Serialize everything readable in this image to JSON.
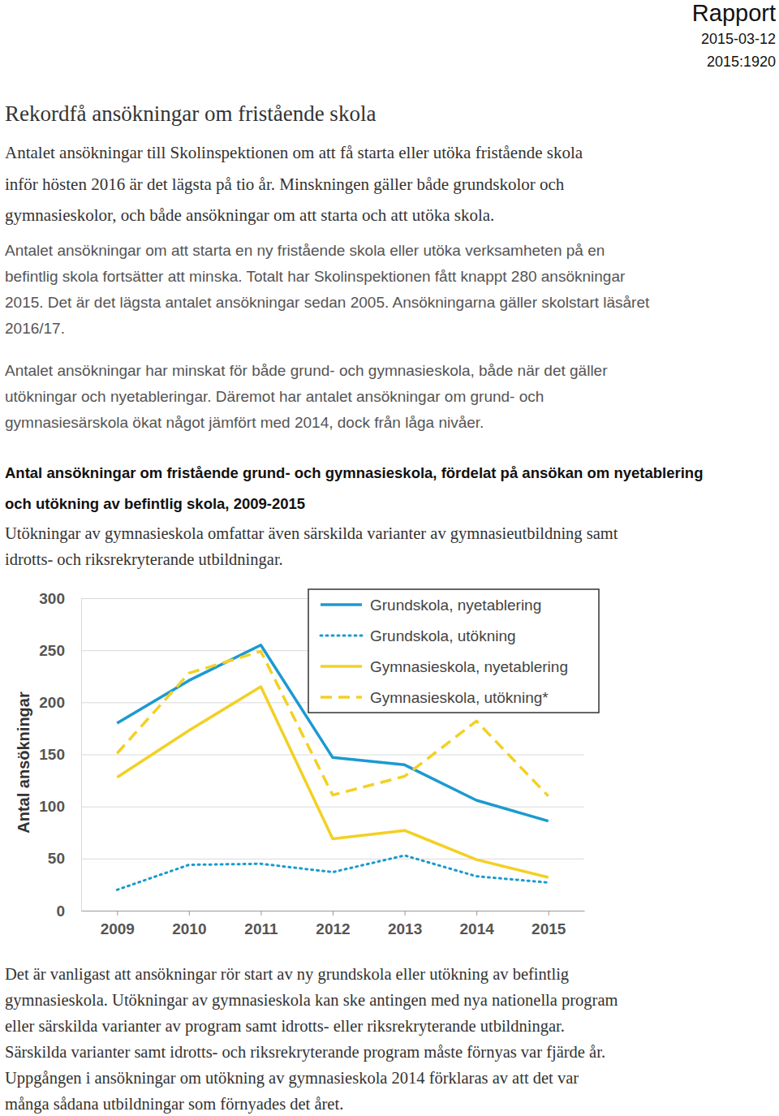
{
  "header": {
    "label": "Rapport",
    "date": "2015-03-12",
    "number": "2015:1920"
  },
  "title": "Rekordfå ansökningar om fristående skola",
  "lead": [
    "Antalet ansökningar till Skolinspektionen om att få starta eller utöka fristående skola",
    "inför hösten 2016 är det lägsta på tio år. Minskningen gäller både grundskolor och",
    "gymnasieskolor, och både ansökningar om att starta och att utöka skola."
  ],
  "paragraphs": [
    [
      "Antalet ansökningar om att starta en ny fristående skola eller utöka verksamheten på en",
      "befintlig skola fortsätter att minska. Totalt har Skolinspektionen fått knappt 280 ansökningar",
      "2015. Det är det lägsta antalet ansökningar sedan 2005. Ansökningarna gäller skolstart läsåret",
      "2016/17."
    ],
    [
      "Antalet ansökningar har minskat för både grund- och gymnasieskola, både när det gäller",
      "utökningar och nyetableringar. Däremot har antalet ansökningar om grund- och",
      "gymnasiesärskola ökat något jämfört med 2014, dock från låga nivåer."
    ]
  ],
  "figure_heading": [
    "Antal ansökningar om fristående grund- och gymnasieskola, fördelat på ansökan om nyetablering",
    "och utökning av befintlig skola, 2009-2015"
  ],
  "figure_note": [
    "Utökningar av gymnasieskola omfattar även särskilda varianter av gymnasieutbildning samt",
    "idrotts- och riksrekryterande utbildningar."
  ],
  "chart_data": {
    "type": "line",
    "y_label": "Antal ansökningar",
    "categories": [
      "2009",
      "2010",
      "2011",
      "2012",
      "2013",
      "2014",
      "2015"
    ],
    "series": [
      {
        "name": "Grundskola, nyetablering",
        "color": "#1b9ad0",
        "line_style": "solid",
        "values": [
          180,
          221,
          255,
          147,
          140,
          106,
          86
        ]
      },
      {
        "name": "Grundskola, utökning",
        "color": "#1b9ad0",
        "line_style": "dotted",
        "values": [
          20,
          44,
          45,
          37,
          53,
          33,
          27
        ]
      },
      {
        "name": "Gymnasieskola, nyetablering",
        "color": "#f3d024",
        "line_style": "solid",
        "values": [
          128,
          173,
          215,
          69,
          77,
          49,
          32
        ]
      },
      {
        "name": "Gymnasieskola, utökning*",
        "color": "#f3d024",
        "line_style": "dashed",
        "values": [
          151,
          228,
          249,
          111,
          129,
          182,
          110
        ]
      }
    ],
    "ylim": [
      0,
      300
    ],
    "yticks": [
      0,
      50,
      100,
      150,
      200,
      250,
      300
    ],
    "grid": true,
    "legend": "upper right"
  },
  "closing": [
    "Det är vanligast att ansökningar rör start av ny grundskola eller utökning av befintlig",
    "gymnasieskola. Utökningar av gymnasieskola kan ske antingen med nya nationella program",
    "eller särskilda varianter av program samt idrotts- eller riksrekryterande utbildningar.",
    "Särskilda varianter samt idrotts- och riksrekryterande program måste förnyas var fjärde år.",
    "Uppgången i ansökningar om utökning av gymnasieskola 2014 förklaras av att det var",
    "många sådana utbildningar som förnyades det året."
  ]
}
